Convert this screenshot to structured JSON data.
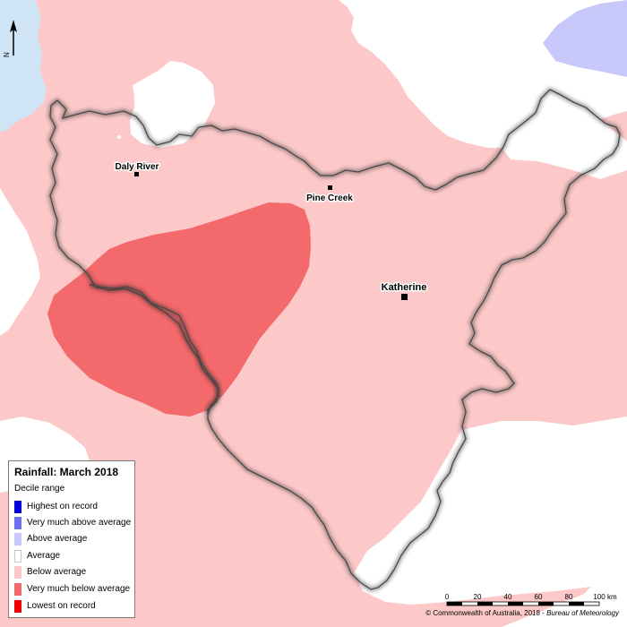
{
  "map": {
    "towns": [
      {
        "name": "Daly River"
      },
      {
        "name": "Pine Creek"
      },
      {
        "name": "Katherine"
      }
    ],
    "north_arrow": {
      "label": "N",
      "icon": "north-arrow-icon"
    }
  },
  "legend": {
    "title": "Rainfall: March 2018",
    "subtitle": "Decile range",
    "items": [
      {
        "label": "Highest on record",
        "color": "#0000dd"
      },
      {
        "label": "Very much above average",
        "color": "#7070f2"
      },
      {
        "label": "Above average",
        "color": "#c8c8fa"
      },
      {
        "label": "Average",
        "color": "#ffffff"
      },
      {
        "label": "Below average",
        "color": "#fcc8c8"
      },
      {
        "label": "Very much below average",
        "color": "#f4696b"
      },
      {
        "label": "Lowest on record",
        "color": "#ee0000"
      }
    ]
  },
  "scale_bar": {
    "ticks": [
      "0",
      "20",
      "40",
      "60",
      "80",
      "100"
    ],
    "unit": "km"
  },
  "copyright": {
    "text": "© Commonwealth of Australia, 2018 - ",
    "agency": "Bureau of Meteorology"
  },
  "colors": {
    "below_average": "#fcc8c8",
    "very_much_below_average": "#f4696b",
    "above_average": "#c8c8fa",
    "water": "#cfe5f6",
    "average": "#ffffff",
    "district_border": "#4a4a4a"
  }
}
